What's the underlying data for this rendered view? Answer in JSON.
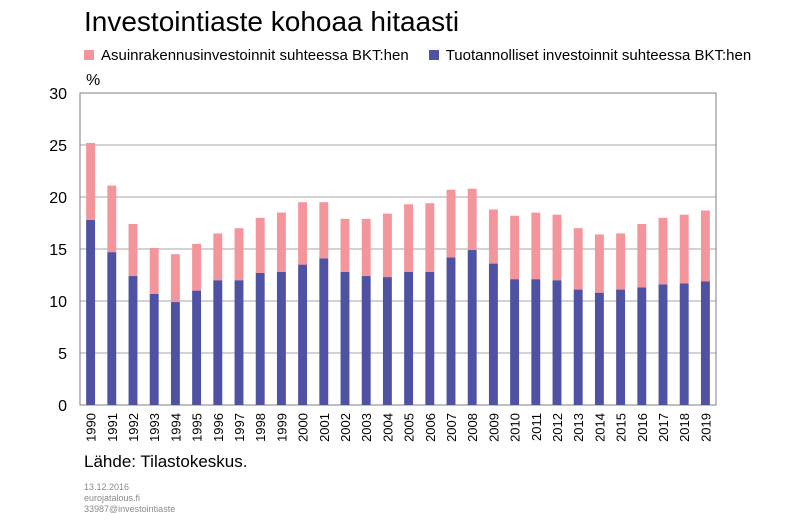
{
  "colors": {
    "residential": "#f4959c",
    "productive": "#4f51a3",
    "grid": "#a6a6a6",
    "axis": "#7f7f7f"
  },
  "chart_data": {
    "type": "bar",
    "stacked": true,
    "title": "Investointiaste kohoaa hitaasti",
    "ylabel": "%",
    "ylim": [
      0,
      30
    ],
    "yticks": [
      0,
      5,
      10,
      15,
      20,
      25,
      30
    ],
    "grid": true,
    "legend_position": "top",
    "categories": [
      "1990",
      "1991",
      "1992",
      "1993",
      "1994",
      "1995",
      "1996",
      "1997",
      "1998",
      "1999",
      "2000",
      "2001",
      "2002",
      "2003",
      "2004",
      "2005",
      "2006",
      "2007",
      "2008",
      "2009",
      "2010",
      "2011",
      "2012",
      "2013",
      "2014",
      "2015",
      "2016",
      "2017",
      "2018",
      "2019"
    ],
    "series": [
      {
        "name": "Tuotannolliset investoinnit suhteessa BKT:hen",
        "values": [
          17.8,
          14.7,
          12.4,
          10.7,
          9.9,
          11.0,
          12.0,
          12.0,
          12.7,
          12.8,
          13.5,
          14.1,
          12.8,
          12.4,
          12.3,
          12.8,
          12.8,
          14.2,
          14.9,
          13.6,
          12.1,
          12.1,
          12.0,
          11.1,
          10.8,
          11.1,
          11.3,
          11.6,
          11.7,
          11.9
        ]
      },
      {
        "name": "Asuinrakennusinvestoinnit suhteessa BKT:hen",
        "values": [
          7.4,
          6.4,
          5.0,
          4.4,
          4.6,
          4.5,
          4.5,
          5.0,
          5.3,
          5.7,
          6.0,
          5.4,
          5.1,
          5.5,
          6.1,
          6.5,
          6.6,
          6.5,
          5.9,
          5.2,
          6.1,
          6.4,
          6.3,
          5.9,
          5.6,
          5.4,
          6.1,
          6.4,
          6.6,
          6.8
        ]
      }
    ],
    "source": "Lähde: Tilastokeskus."
  },
  "footer": {
    "date": "13.12.2016",
    "site": "eurojatalous.fi",
    "code": "33987@investointiaste"
  }
}
